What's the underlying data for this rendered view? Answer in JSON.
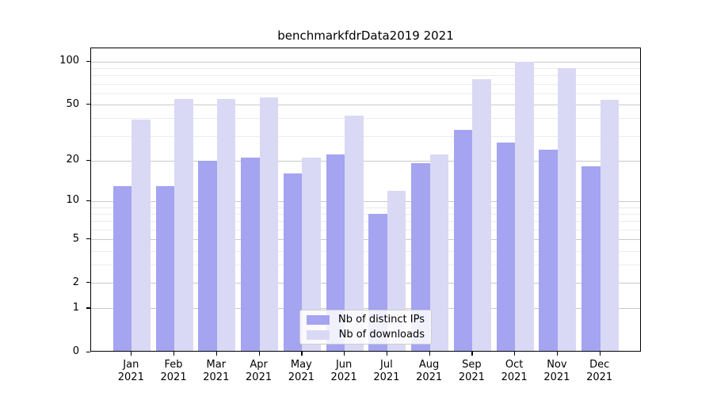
{
  "title": "benchmarkfdrData2019 2021",
  "legend": {
    "items": [
      {
        "label": "Nb of distinct IPs",
        "color": "#a4a4f1"
      },
      {
        "label": "Nb of downloads",
        "color": "#d9d9f6"
      }
    ]
  },
  "chart_data": {
    "type": "bar",
    "title": "benchmarkfdrData2019 2021",
    "categories": [
      "Jan",
      "Feb",
      "Mar",
      "Apr",
      "May",
      "Jun",
      "Jul",
      "Aug",
      "Sep",
      "Oct",
      "Nov",
      "Dec"
    ],
    "category_year": "2021",
    "series": [
      {
        "name": "Nb of distinct IPs",
        "color": "#a4a4f1",
        "values": [
          13,
          13,
          20,
          21,
          16,
          22,
          8,
          19,
          33,
          27,
          24,
          18
        ]
      },
      {
        "name": "Nb of downloads",
        "color": "#d9d9f6",
        "values": [
          39,
          55,
          55,
          56,
          21,
          42,
          12,
          22,
          75,
          100,
          90,
          54
        ]
      }
    ],
    "xlabel": "",
    "ylabel": "",
    "yscale": "log10(1+y)",
    "yticks": [
      0,
      1,
      2,
      5,
      10,
      20,
      50,
      100
    ],
    "yticks_minor": [
      3,
      4,
      6,
      7,
      8,
      9,
      30,
      40,
      60,
      70,
      80,
      90
    ],
    "ylim": [
      0,
      123
    ],
    "grid": true,
    "legend_position": "lower center"
  }
}
